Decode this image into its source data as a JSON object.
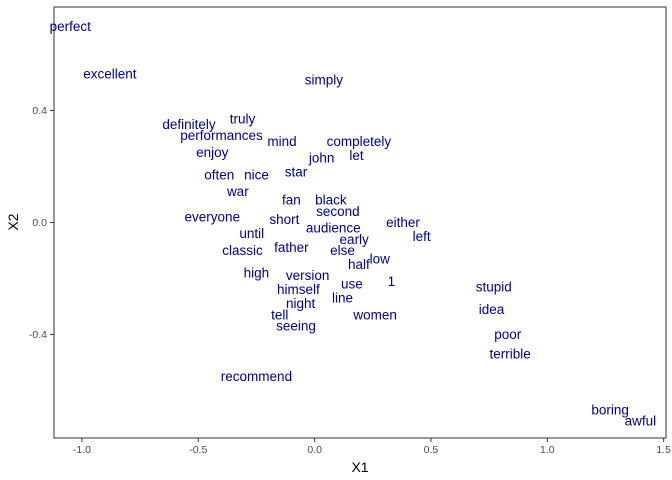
{
  "chart_data": {
    "type": "scatter",
    "subtype": "text-labels",
    "xlabel": "X1",
    "ylabel": "X2",
    "xlim": [
      -1.12,
      1.51
    ],
    "ylim": [
      -0.77,
      0.77
    ],
    "xticks": [
      -1.0,
      -0.5,
      0.0,
      0.5,
      1.0,
      1.5
    ],
    "xtick_labels": [
      "-1.0",
      "-0.5",
      "0.0",
      "0.5",
      "1.0",
      "1.5"
    ],
    "yticks": [
      -0.4,
      0.0,
      0.4
    ],
    "ytick_labels": [
      "-0.4",
      "0.0",
      "0.4"
    ],
    "grid": false,
    "text_color": "#00008B",
    "points": [
      {
        "label": "perfect",
        "x": -1.05,
        "y": 0.7
      },
      {
        "label": "excellent",
        "x": -0.88,
        "y": 0.53
      },
      {
        "label": "simply",
        "x": 0.04,
        "y": 0.51
      },
      {
        "label": "truly",
        "x": -0.31,
        "y": 0.37
      },
      {
        "label": "definitely",
        "x": -0.54,
        "y": 0.35
      },
      {
        "label": "performances",
        "x": -0.4,
        "y": 0.31
      },
      {
        "label": "mind",
        "x": -0.14,
        "y": 0.29
      },
      {
        "label": "completely",
        "x": 0.19,
        "y": 0.29
      },
      {
        "label": "enjoy",
        "x": -0.44,
        "y": 0.25
      },
      {
        "label": "john",
        "x": 0.03,
        "y": 0.23
      },
      {
        "label": "let",
        "x": 0.18,
        "y": 0.24
      },
      {
        "label": "often",
        "x": -0.41,
        "y": 0.17
      },
      {
        "label": "nice",
        "x": -0.25,
        "y": 0.17
      },
      {
        "label": "star",
        "x": -0.08,
        "y": 0.18
      },
      {
        "label": "war",
        "x": -0.33,
        "y": 0.11
      },
      {
        "label": "fan",
        "x": -0.1,
        "y": 0.08
      },
      {
        "label": "black",
        "x": 0.07,
        "y": 0.08
      },
      {
        "label": "second",
        "x": 0.1,
        "y": 0.04
      },
      {
        "label": "everyone",
        "x": -0.44,
        "y": 0.02
      },
      {
        "label": "short",
        "x": -0.13,
        "y": 0.01
      },
      {
        "label": "either",
        "x": 0.38,
        "y": 0.0
      },
      {
        "label": "audience",
        "x": 0.08,
        "y": -0.02
      },
      {
        "label": "until",
        "x": -0.27,
        "y": -0.04
      },
      {
        "label": "left",
        "x": 0.46,
        "y": -0.05
      },
      {
        "label": "early",
        "x": 0.17,
        "y": -0.06
      },
      {
        "label": "classic",
        "x": -0.31,
        "y": -0.1
      },
      {
        "label": "father",
        "x": -0.1,
        "y": -0.09
      },
      {
        "label": "else",
        "x": 0.12,
        "y": -0.1
      },
      {
        "label": "low",
        "x": 0.28,
        "y": -0.13
      },
      {
        "label": "half",
        "x": 0.19,
        "y": -0.15
      },
      {
        "label": "high",
        "x": -0.25,
        "y": -0.18
      },
      {
        "label": "version",
        "x": -0.03,
        "y": -0.19
      },
      {
        "label": "1",
        "x": 0.33,
        "y": -0.21
      },
      {
        "label": "use",
        "x": 0.16,
        "y": -0.22
      },
      {
        "label": "himself",
        "x": -0.07,
        "y": -0.24
      },
      {
        "label": "stupid",
        "x": 0.77,
        "y": -0.23
      },
      {
        "label": "line",
        "x": 0.12,
        "y": -0.27
      },
      {
        "label": "night",
        "x": -0.06,
        "y": -0.29
      },
      {
        "label": "idea",
        "x": 0.76,
        "y": -0.31
      },
      {
        "label": "tell",
        "x": -0.15,
        "y": -0.33
      },
      {
        "label": "women",
        "x": 0.26,
        "y": -0.33
      },
      {
        "label": "seeing",
        "x": -0.08,
        "y": -0.37
      },
      {
        "label": "poor",
        "x": 0.83,
        "y": -0.4
      },
      {
        "label": "terrible",
        "x": 0.84,
        "y": -0.47
      },
      {
        "label": "recommend",
        "x": -0.25,
        "y": -0.55
      },
      {
        "label": "boring",
        "x": 1.27,
        "y": -0.67
      },
      {
        "label": "awful",
        "x": 1.4,
        "y": -0.71
      }
    ]
  }
}
